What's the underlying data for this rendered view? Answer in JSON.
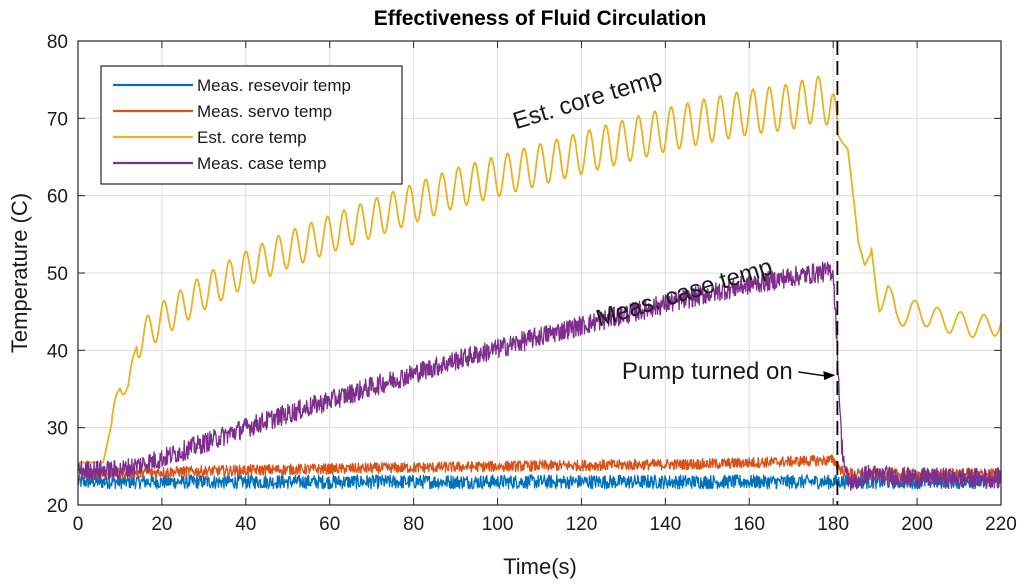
{
  "chart_data": {
    "type": "line",
    "title": "Effectiveness of Fluid Circulation",
    "xlabel": "Time(s)",
    "ylabel": "Temperature (C)",
    "xlim": [
      0,
      220
    ],
    "ylim": [
      20,
      80
    ],
    "xticks": [
      0,
      20,
      40,
      60,
      80,
      100,
      120,
      140,
      160,
      180,
      200,
      220
    ],
    "yticks": [
      20,
      30,
      40,
      50,
      60,
      70,
      80
    ],
    "grid": true,
    "legend_position": "top-left",
    "series": [
      {
        "name": "Meas. resevoir temp",
        "color": "#0072BD",
        "noise": 0.9,
        "points": [
          [
            0,
            23
          ],
          [
            220,
            23
          ]
        ]
      },
      {
        "name": "Meas. servo temp",
        "color": "#D95319",
        "noise": 0.7,
        "points": [
          [
            0,
            24
          ],
          [
            40,
            24.5
          ],
          [
            100,
            25
          ],
          [
            150,
            25.3
          ],
          [
            180,
            25.8
          ],
          [
            182,
            24.5
          ],
          [
            185,
            24
          ],
          [
            220,
            24
          ]
        ]
      },
      {
        "name": "Est. core temp",
        "color": "#EDB120",
        "noise": 0,
        "oscillation": {
          "period": 3.9,
          "start": 8,
          "end": 181
        },
        "points": [
          [
            0,
            25.5
          ],
          [
            6,
            25.5
          ],
          [
            10,
            35.5
          ],
          [
            12,
            35
          ],
          [
            14,
            41
          ],
          [
            20,
            44
          ],
          [
            30,
            47.5
          ],
          [
            40,
            50.5
          ],
          [
            50,
            53
          ],
          [
            60,
            55
          ],
          [
            70,
            57
          ],
          [
            80,
            59
          ],
          [
            90,
            61
          ],
          [
            100,
            62.5
          ],
          [
            110,
            64
          ],
          [
            120,
            65.5
          ],
          [
            130,
            67
          ],
          [
            140,
            68.5
          ],
          [
            150,
            69.7
          ],
          [
            160,
            70.8
          ],
          [
            170,
            71.5
          ],
          [
            176,
            72.5
          ],
          [
            179.5,
            72
          ],
          [
            181,
            68
          ],
          [
            182,
            67
          ],
          [
            183.5,
            66
          ],
          [
            185,
            59
          ],
          [
            186,
            54
          ],
          [
            187.5,
            51
          ],
          [
            189,
            52.5
          ],
          [
            191,
            46.5
          ],
          [
            193,
            47.5
          ],
          [
            195,
            44.5
          ],
          [
            200,
            45
          ],
          [
            205,
            44
          ],
          [
            210,
            43.5
          ],
          [
            215,
            43
          ],
          [
            220,
            43.5
          ]
        ]
      },
      {
        "name": "Meas. case temp",
        "color": "#7E2F8E",
        "noise": 1.3,
        "points": [
          [
            0,
            24.5
          ],
          [
            10,
            24.5
          ],
          [
            20,
            26
          ],
          [
            30,
            28
          ],
          [
            40,
            30
          ],
          [
            50,
            31.8
          ],
          [
            60,
            33.5
          ],
          [
            70,
            35.3
          ],
          [
            80,
            37
          ],
          [
            90,
            38.7
          ],
          [
            100,
            40.2
          ],
          [
            110,
            41.8
          ],
          [
            120,
            43.2
          ],
          [
            130,
            44.6
          ],
          [
            140,
            46
          ],
          [
            150,
            47.3
          ],
          [
            160,
            48.5
          ],
          [
            170,
            49.5
          ],
          [
            180,
            50.3
          ],
          [
            181,
            40
          ],
          [
            182,
            28
          ],
          [
            183,
            24
          ],
          [
            184,
            23
          ],
          [
            186,
            23.2
          ],
          [
            188,
            24
          ],
          [
            192,
            23.8
          ],
          [
            200,
            23.5
          ],
          [
            210,
            23.5
          ],
          [
            220,
            23.5
          ]
        ]
      }
    ],
    "vline": {
      "x": 181
    },
    "annotations": [
      {
        "text": "Est. core temp",
        "x": 122,
        "y": 71.5,
        "rotate": -17
      },
      {
        "text": "Meas. case temp",
        "x": 145,
        "y": 46.5,
        "rotate": -17
      },
      {
        "text": "Pump turned on",
        "x": 150,
        "y": 36.3,
        "arrow_to": [
          180.5,
          36.8
        ]
      }
    ]
  }
}
